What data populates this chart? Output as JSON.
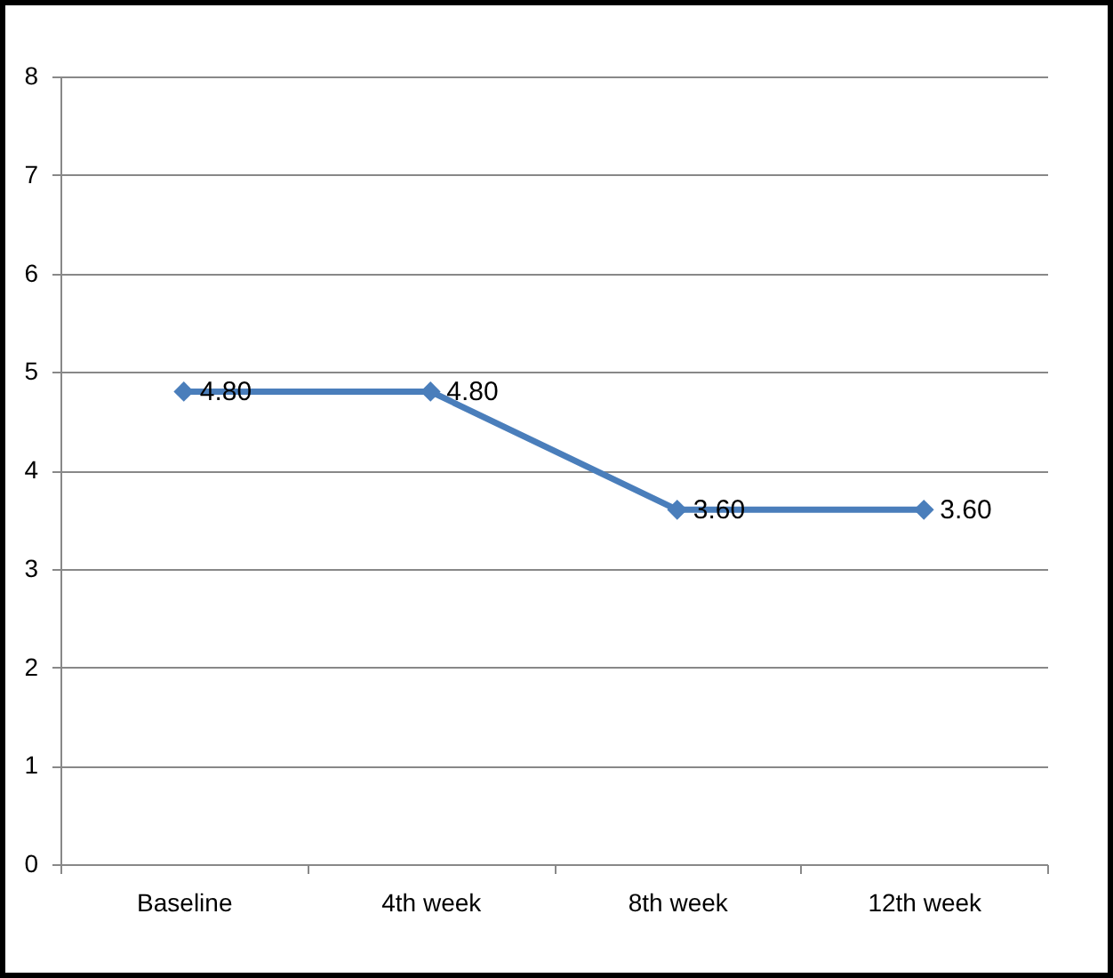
{
  "chart_data": {
    "type": "line",
    "categories": [
      "Baseline",
      "4th week",
      "8th week",
      "12th week"
    ],
    "values": [
      4.8,
      4.8,
      3.6,
      3.6
    ],
    "value_labels": [
      "4.80",
      "4.80",
      "3.60",
      "3.60"
    ],
    "color": "#4a7ebb",
    "ylim": [
      0,
      8
    ],
    "yticks": [
      0,
      1,
      2,
      3,
      4,
      5,
      6,
      7,
      8
    ],
    "grid": "y",
    "marker": "diamond"
  }
}
